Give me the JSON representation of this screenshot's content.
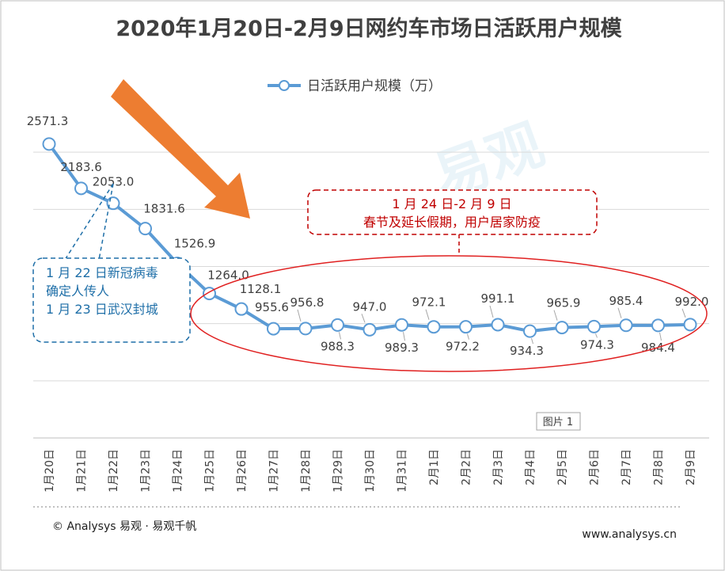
{
  "chart_data": {
    "type": "line",
    "title": "2020年1月20日-2月9日网约车市场日活跃用户规模",
    "categories": [
      "1月20日",
      "1月21日",
      "1月22日",
      "1月23日",
      "1月24日",
      "1月25日",
      "1月26日",
      "1月27日",
      "1月28日",
      "1月29日",
      "1月30日",
      "1月31日",
      "2月1日",
      "2月2日",
      "2月3日",
      "2月4日",
      "2月5日",
      "2月6日",
      "2月7日",
      "2月8日",
      "2月9日"
    ],
    "series": [
      {
        "name": "日活跃用户规模（万）",
        "values": [
          2571.3,
          2183.6,
          2053.0,
          1831.6,
          1526.9,
          1264.0,
          1128.1,
          955.6,
          956.8,
          988.3,
          947.0,
          989.3,
          972.1,
          972.2,
          991.1,
          934.3,
          965.9,
          974.3,
          985.4,
          984.4,
          992.0
        ],
        "color": "#5b9bd5"
      }
    ],
    "ylim": [
      0,
      3000
    ],
    "grid": true,
    "legend_position": "top-center",
    "annotations": {
      "covid": [
        "1 月 22 日新冠病毒",
        "确定人传人",
        "1 月 23 日武汉封城"
      ],
      "holiday": [
        "1 月 24 日-2 月 9 日",
        "春节及延长假期，用户居家防疫"
      ]
    }
  },
  "figure_label": "图片 1",
  "footer": {
    "source": "© Analysys 易观 · 易观千帆",
    "website": "www.analysys.cn"
  },
  "watermark": "易观",
  "colors": {
    "line": "#5b9bd5",
    "arrow": "#ed7d31",
    "annot_blue": "#1f6fa8",
    "annot_red": "#c00000"
  }
}
